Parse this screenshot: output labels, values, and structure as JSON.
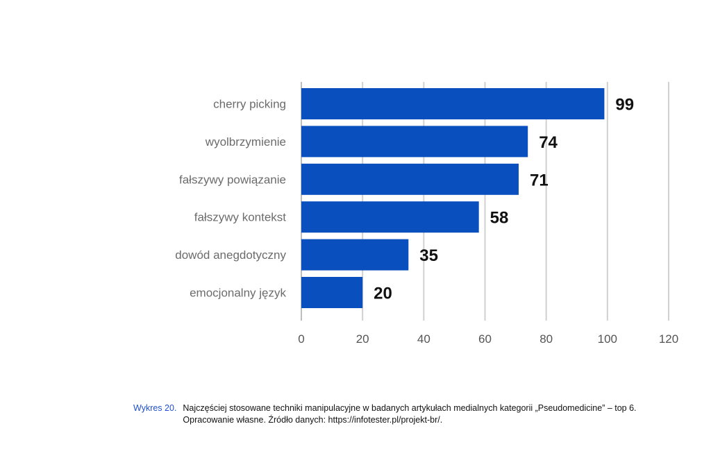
{
  "chart_data": {
    "type": "bar",
    "orientation": "horizontal",
    "categories": [
      "cherry picking",
      "wyolbrzymienie",
      "fałszywy powiązanie",
      "fałszywy kontekst",
      "dowód anegdotyczny",
      "emocjonalny język"
    ],
    "values": [
      99,
      74,
      71,
      58,
      35,
      20
    ],
    "xlim": [
      0,
      120
    ],
    "xticks": [
      0,
      20,
      40,
      60,
      80,
      100,
      120
    ],
    "grid": "vertical",
    "bar_color": "#0a4fbe",
    "title": "",
    "xlabel": "",
    "ylabel": ""
  },
  "caption": {
    "number": "Wykres 20.",
    "text": "Najczęściej stosowane techniki manipulacyjne w badanych artykułach medialnych kategorii „Pseudomedicine” – top 6. Opracowanie własne. Źródło danych: https://infotester.pl/projekt-br/."
  }
}
